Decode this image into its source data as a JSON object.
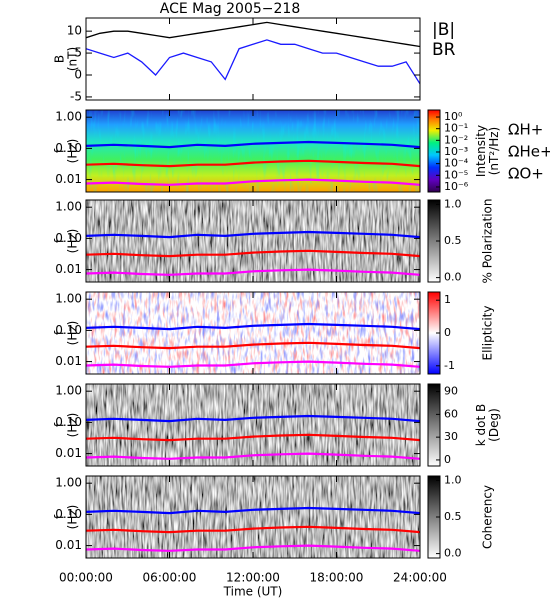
{
  "chart_data": [
    {
      "type": "line",
      "title": "ACE Mag 2005−218",
      "ylabel": [
        "B",
        "(nT)"
      ],
      "x": [
        0,
        1,
        2,
        3,
        4,
        5,
        6,
        7,
        8,
        9,
        10,
        11,
        12,
        13,
        14,
        15,
        16,
        17,
        18,
        19,
        20,
        21,
        22,
        23,
        24
      ],
      "xlim": [
        0,
        24
      ],
      "ylim": [
        -5.7,
        13
      ],
      "yticks": [
        -5,
        0,
        5,
        10
      ],
      "series": [
        {
          "name": "|B|",
          "color": "#000000",
          "values": [
            8.5,
            9.5,
            10,
            10,
            9.5,
            9,
            8.5,
            9,
            9.5,
            10,
            10.5,
            11,
            11.5,
            12,
            11.5,
            11,
            10.5,
            10,
            9.5,
            9,
            8.5,
            8,
            7.5,
            7,
            6.5
          ]
        },
        {
          "name": "BR",
          "color": "#1a1aff",
          "values": [
            6,
            5,
            4,
            5,
            3,
            0,
            4,
            5,
            4,
            3,
            -1,
            6,
            7,
            8,
            7,
            7,
            6,
            5,
            5,
            4,
            3,
            2,
            2,
            3,
            -2
          ]
        }
      ]
    },
    {
      "type": "heatmap",
      "ylabel": [
        "f",
        "(Hz)"
      ],
      "yscale": "log",
      "ylim": [
        0.004,
        1.7
      ],
      "yticks": [
        {
          "value": 1,
          "label": "1.00"
        },
        {
          "value": 0.1,
          "label": "0.10"
        },
        {
          "value": 0.01,
          "label": "0.01"
        }
      ],
      "xlim": [
        0,
        24
      ],
      "colormap": "rainbow",
      "legend": true,
      "colorbar": {
        "label": [
          "Intensity",
          "(nT²/Hz)"
        ],
        "scale": "log",
        "lim": [
          3.7e-07,
          4
        ],
        "ticks": [
          {
            "value": 1,
            "label": "10⁰"
          },
          {
            "value": 0.1,
            "label": "10⁻¹"
          },
          {
            "value": 0.01,
            "label": "10⁻²"
          },
          {
            "value": 0.001,
            "label": "10⁻³"
          },
          {
            "value": 0.0001,
            "label": "10⁻⁴"
          },
          {
            "value": 1e-05,
            "label": "10⁻⁵"
          },
          {
            "value": 1e-06,
            "label": "10⁻⁶"
          }
        ]
      },
      "x": [
        0,
        2,
        4,
        6,
        8,
        10,
        12,
        14,
        16,
        18,
        20,
        22,
        24
      ],
      "series": [
        {
          "name": "ΩH+",
          "color": "#0000ff",
          "values": [
            0.12,
            0.13,
            0.12,
            0.11,
            0.13,
            0.12,
            0.14,
            0.15,
            0.16,
            0.15,
            0.14,
            0.13,
            0.11
          ]
        },
        {
          "name": "ΩHe+",
          "color": "#ff0000",
          "values": [
            0.03,
            0.032,
            0.029,
            0.027,
            0.03,
            0.03,
            0.035,
            0.038,
            0.04,
            0.037,
            0.034,
            0.032,
            0.027
          ]
        },
        {
          "name": "ΩO+",
          "color": "#ff00ff",
          "values": [
            0.0075,
            0.008,
            0.0072,
            0.0068,
            0.0075,
            0.0075,
            0.0088,
            0.0095,
            0.01,
            0.0093,
            0.0085,
            0.008,
            0.0068
          ]
        }
      ]
    },
    {
      "type": "heatmap",
      "ylabel": [
        "f",
        "(Hz)"
      ],
      "yscale": "log",
      "ylim": [
        0.004,
        1.7
      ],
      "yticks": [
        {
          "value": 1,
          "label": "1.00"
        },
        {
          "value": 0.1,
          "label": "0.10"
        },
        {
          "value": 0.01,
          "label": "0.01"
        }
      ],
      "xlim": [
        0,
        24
      ],
      "colormap": "gray",
      "colorbar": {
        "label": [
          "% Polarization"
        ],
        "scale": "linear",
        "lim": [
          -0.06,
          1.06
        ],
        "ticks": [
          {
            "value": 0,
            "label": "0.0"
          },
          {
            "value": 0.5,
            "label": "0.5"
          },
          {
            "value": 1,
            "label": "1.0"
          }
        ]
      },
      "x": [
        0,
        2,
        4,
        6,
        8,
        10,
        12,
        14,
        16,
        18,
        20,
        22,
        24
      ],
      "series": [
        {
          "name": "ΩH+",
          "color": "#0000ff",
          "values": [
            0.12,
            0.13,
            0.12,
            0.11,
            0.13,
            0.12,
            0.14,
            0.15,
            0.16,
            0.15,
            0.14,
            0.13,
            0.11
          ]
        },
        {
          "name": "ΩHe+",
          "color": "#ff0000",
          "values": [
            0.03,
            0.032,
            0.029,
            0.027,
            0.03,
            0.03,
            0.035,
            0.038,
            0.04,
            0.037,
            0.034,
            0.032,
            0.027
          ]
        },
        {
          "name": "ΩO+",
          "color": "#ff00ff",
          "values": [
            0.0075,
            0.008,
            0.0072,
            0.0068,
            0.0075,
            0.0075,
            0.0088,
            0.0095,
            0.01,
            0.0093,
            0.0085,
            0.008,
            0.0068
          ]
        }
      ]
    },
    {
      "type": "heatmap",
      "ylabel": [
        "f",
        "(Hz)"
      ],
      "yscale": "log",
      "ylim": [
        0.004,
        1.7
      ],
      "yticks": [
        {
          "value": 1,
          "label": "1.00"
        },
        {
          "value": 0.1,
          "label": "0.10"
        },
        {
          "value": 0.01,
          "label": "0.01"
        }
      ],
      "xlim": [
        0,
        24
      ],
      "colormap": "bwr",
      "colorbar": {
        "label": [
          "Ellipticity"
        ],
        "scale": "linear",
        "lim": [
          -1.25,
          1.25
        ],
        "ticks": [
          -1,
          0,
          1
        ]
      },
      "x": [
        0,
        2,
        4,
        6,
        8,
        10,
        12,
        14,
        16,
        18,
        20,
        22,
        24
      ],
      "series": [
        {
          "name": "ΩH+",
          "color": "#0000ff",
          "values": [
            0.12,
            0.13,
            0.12,
            0.11,
            0.13,
            0.12,
            0.14,
            0.15,
            0.16,
            0.15,
            0.14,
            0.13,
            0.11
          ]
        },
        {
          "name": "ΩHe+",
          "color": "#ff0000",
          "values": [
            0.03,
            0.032,
            0.029,
            0.027,
            0.03,
            0.03,
            0.035,
            0.038,
            0.04,
            0.037,
            0.034,
            0.032,
            0.027
          ]
        },
        {
          "name": "ΩO+",
          "color": "#ff00ff",
          "values": [
            0.0075,
            0.008,
            0.0072,
            0.0068,
            0.0075,
            0.0075,
            0.0088,
            0.0095,
            0.01,
            0.0093,
            0.0085,
            0.008,
            0.0068
          ]
        }
      ]
    },
    {
      "type": "heatmap",
      "ylabel": [
        "f",
        "(Hz)"
      ],
      "yscale": "log",
      "ylim": [
        0.004,
        1.7
      ],
      "yticks": [
        {
          "value": 1,
          "label": "1.00"
        },
        {
          "value": 0.1,
          "label": "0.10"
        },
        {
          "value": 0.01,
          "label": "0.01"
        }
      ],
      "xlim": [
        0,
        24
      ],
      "colormap": "gray",
      "colorbar": {
        "label": [
          "k dot B",
          "(Deg)"
        ],
        "scale": "linear",
        "lim": [
          -8,
          100
        ],
        "ticks": [
          0,
          30,
          60,
          90
        ]
      },
      "x": [
        0,
        2,
        4,
        6,
        8,
        10,
        12,
        14,
        16,
        18,
        20,
        22,
        24
      ],
      "series": [
        {
          "name": "ΩH+",
          "color": "#0000ff",
          "values": [
            0.12,
            0.13,
            0.12,
            0.11,
            0.13,
            0.12,
            0.14,
            0.15,
            0.16,
            0.15,
            0.14,
            0.13,
            0.11
          ]
        },
        {
          "name": "ΩHe+",
          "color": "#ff0000",
          "values": [
            0.03,
            0.032,
            0.029,
            0.027,
            0.03,
            0.03,
            0.035,
            0.038,
            0.04,
            0.037,
            0.034,
            0.032,
            0.027
          ]
        },
        {
          "name": "ΩO+",
          "color": "#ff00ff",
          "values": [
            0.0075,
            0.008,
            0.0072,
            0.0068,
            0.0075,
            0.0075,
            0.0088,
            0.0095,
            0.01,
            0.0093,
            0.0085,
            0.008,
            0.0068
          ]
        }
      ]
    },
    {
      "type": "heatmap",
      "ylabel": [
        "f",
        "(Hz)"
      ],
      "yscale": "log",
      "ylim": [
        0.004,
        1.7
      ],
      "yticks": [
        {
          "value": 1,
          "label": "1.00"
        },
        {
          "value": 0.1,
          "label": "0.10"
        },
        {
          "value": 0.01,
          "label": "0.01"
        }
      ],
      "xlim": [
        0,
        24
      ],
      "colormap": "gray",
      "colorbar": {
        "label": [
          "Coherency"
        ],
        "scale": "linear",
        "lim": [
          -0.06,
          1.06
        ],
        "ticks": [
          {
            "value": 0,
            "label": "0.0"
          },
          {
            "value": 0.5,
            "label": "0.5"
          },
          {
            "value": 1,
            "label": "1.0"
          }
        ]
      },
      "x": [
        0,
        2,
        4,
        6,
        8,
        10,
        12,
        14,
        16,
        18,
        20,
        22,
        24
      ],
      "series": [
        {
          "name": "ΩH+",
          "color": "#0000ff",
          "values": [
            0.12,
            0.13,
            0.12,
            0.11,
            0.13,
            0.12,
            0.14,
            0.15,
            0.16,
            0.15,
            0.14,
            0.13,
            0.11
          ]
        },
        {
          "name": "ΩHe+",
          "color": "#ff0000",
          "values": [
            0.03,
            0.032,
            0.029,
            0.027,
            0.03,
            0.03,
            0.035,
            0.038,
            0.04,
            0.037,
            0.034,
            0.032,
            0.027
          ]
        },
        {
          "name": "ΩO+",
          "color": "#ff00ff",
          "values": [
            0.0075,
            0.008,
            0.0072,
            0.0068,
            0.0075,
            0.0075,
            0.0088,
            0.0095,
            0.01,
            0.0093,
            0.0085,
            0.008,
            0.0068
          ]
        }
      ],
      "xlabel": "Time (UT)",
      "xticks": [
        {
          "value": 0,
          "label": "00:00:00"
        },
        {
          "value": 6,
          "label": "06:00:00"
        },
        {
          "value": 12,
          "label": "12:00:00"
        },
        {
          "value": 18,
          "label": "18:00:00"
        },
        {
          "value": 24,
          "label": "24:00:00"
        }
      ]
    }
  ]
}
